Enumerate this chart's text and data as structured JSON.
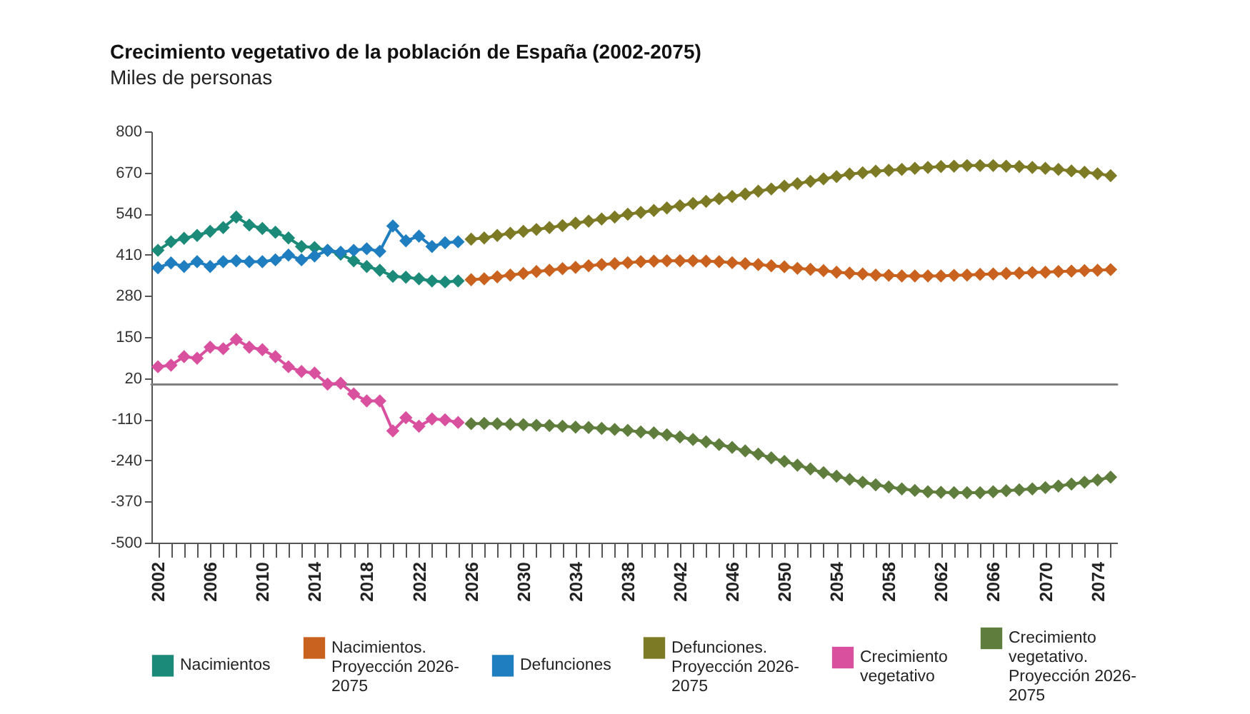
{
  "chart_data": {
    "type": "line",
    "title": "Crecimiento vegetativo de la población de España (2002-2075)",
    "subtitle": "Miles de personas",
    "categories": [
      "2002",
      null,
      null,
      null,
      "2006",
      null,
      null,
      null,
      "2010",
      null,
      null,
      null,
      "2014",
      null,
      null,
      null,
      "2018",
      null,
      null,
      null,
      "2022",
      null,
      null,
      null,
      "2026",
      null,
      null,
      null,
      "2030",
      null,
      null,
      null,
      "2034",
      null,
      null,
      null,
      "2038",
      null,
      null,
      null,
      "2042",
      null,
      null,
      null,
      "2046",
      null,
      null,
      null,
      "2050",
      null,
      null,
      null,
      "2054",
      null,
      null,
      null,
      "2058",
      null,
      null,
      null,
      "2062",
      null,
      null,
      null,
      "2066",
      null,
      null,
      null,
      "2070",
      null,
      null,
      null,
      "2074",
      null
    ],
    "ylim": [
      -500,
      800
    ],
    "yticks": [
      -500,
      -370,
      -240,
      -110,
      20,
      150,
      280,
      410,
      540,
      670,
      800
    ],
    "marker": "diamond",
    "legend": "bottom",
    "ref_lines": [
      {
        "axis": "y",
        "value": 0,
        "color": "#808080"
      }
    ],
    "series": [
      {
        "name": "Nacimientos",
        "color": "#1b8a78",
        "values": [
          424,
          451,
          462,
          471,
          484,
          496,
          529,
          504,
          493,
          481,
          463,
          436,
          433,
          424,
          412,
          391,
          373,
          361,
          342,
          339,
          334,
          327,
          324,
          327,
          null,
          null,
          null,
          null,
          null,
          null,
          null,
          null,
          null,
          null,
          null,
          null,
          null,
          null,
          null,
          null,
          null,
          null,
          null,
          null,
          null,
          null,
          null,
          null,
          null,
          null,
          null,
          null,
          null,
          null,
          null,
          null,
          null,
          null,
          null,
          null,
          null,
          null,
          null,
          null,
          null,
          null,
          null,
          null,
          null,
          null,
          null,
          null,
          null,
          null
        ]
      },
      {
        "name": "Nacimientos. Proyección 2026-2075",
        "color": "#c8621e",
        "values": [
          null,
          null,
          null,
          null,
          null,
          null,
          null,
          null,
          null,
          null,
          null,
          null,
          null,
          null,
          null,
          null,
          null,
          null,
          null,
          null,
          null,
          null,
          null,
          null,
          331,
          334,
          340,
          346,
          351,
          357,
          361,
          366,
          370,
          375,
          379,
          382,
          385,
          388,
          390,
          391,
          391,
          391,
          390,
          388,
          385,
          382,
          379,
          375,
          372,
          367,
          364,
          360,
          355,
          352,
          349,
          346,
          345,
          343,
          343,
          343,
          343,
          345,
          346,
          348,
          349,
          351,
          352,
          354,
          355,
          357,
          358,
          360,
          361,
          363
        ]
      },
      {
        "name": "Defunciones",
        "color": "#1f7ec0",
        "values": [
          369,
          384,
          373,
          388,
          373,
          388,
          391,
          388,
          388,
          394,
          409,
          394,
          406,
          424,
          418,
          424,
          429,
          421,
          501,
          454,
          469,
          436,
          448,
          451,
          null,
          null,
          null,
          null,
          null,
          null,
          null,
          null,
          null,
          null,
          null,
          null,
          null,
          null,
          null,
          null,
          null,
          null,
          null,
          null,
          null,
          null,
          null,
          null,
          null,
          null,
          null,
          null,
          null,
          null,
          null,
          null,
          null,
          null,
          null,
          null,
          null,
          null,
          null,
          null,
          null,
          null,
          null,
          null,
          null,
          null,
          null,
          null,
          null,
          null
        ]
      },
      {
        "name": "Defunciones. Proyección 2026-2075",
        "color": "#7d7a25",
        "values": [
          null,
          null,
          null,
          null,
          null,
          null,
          null,
          null,
          null,
          null,
          null,
          null,
          null,
          null,
          null,
          null,
          null,
          null,
          null,
          null,
          null,
          null,
          null,
          null,
          459,
          463,
          471,
          478,
          484,
          490,
          496,
          502,
          510,
          516,
          523,
          529,
          538,
          544,
          550,
          558,
          565,
          572,
          579,
          587,
          594,
          602,
          611,
          618,
          627,
          635,
          642,
          650,
          657,
          665,
          669,
          674,
          677,
          680,
          683,
          686,
          689,
          690,
          692,
          692,
          692,
          690,
          689,
          686,
          683,
          680,
          675,
          671,
          666,
          660
        ]
      },
      {
        "name": "Crecimiento vegetativo",
        "color": "#d9509f",
        "values": [
          56,
          61,
          88,
          83,
          118,
          113,
          142,
          118,
          110,
          88,
          56,
          41,
          36,
          1,
          4,
          -30,
          -52,
          -52,
          -147,
          -105,
          -132,
          -109,
          -112,
          -120,
          null,
          null,
          null,
          null,
          null,
          null,
          null,
          null,
          null,
          null,
          null,
          null,
          null,
          null,
          null,
          null,
          null,
          null,
          null,
          null,
          null,
          null,
          null,
          null,
          null,
          null,
          null,
          null,
          null,
          null,
          null,
          null,
          null,
          null,
          null,
          null,
          null,
          null,
          null,
          null,
          null,
          null,
          null,
          null,
          null,
          null,
          null,
          null,
          null,
          null
        ]
      },
      {
        "name": "Crecimiento vegetativo. Proyección 2026-2075",
        "color": "#5f7d3c",
        "values": [
          null,
          null,
          null,
          null,
          null,
          null,
          null,
          null,
          null,
          null,
          null,
          null,
          null,
          null,
          null,
          null,
          null,
          null,
          null,
          null,
          null,
          null,
          null,
          null,
          -124,
          -123,
          -124,
          -126,
          -127,
          -129,
          -130,
          -132,
          -135,
          -136,
          -139,
          -142,
          -145,
          -150,
          -153,
          -159,
          -166,
          -174,
          -181,
          -190,
          -199,
          -210,
          -220,
          -232,
          -243,
          -255,
          -267,
          -279,
          -290,
          -300,
          -309,
          -317,
          -324,
          -330,
          -335,
          -339,
          -341,
          -342,
          -342,
          -342,
          -339,
          -336,
          -333,
          -330,
          -326,
          -321,
          -315,
          -309,
          -302,
          -293
        ]
      }
    ]
  }
}
